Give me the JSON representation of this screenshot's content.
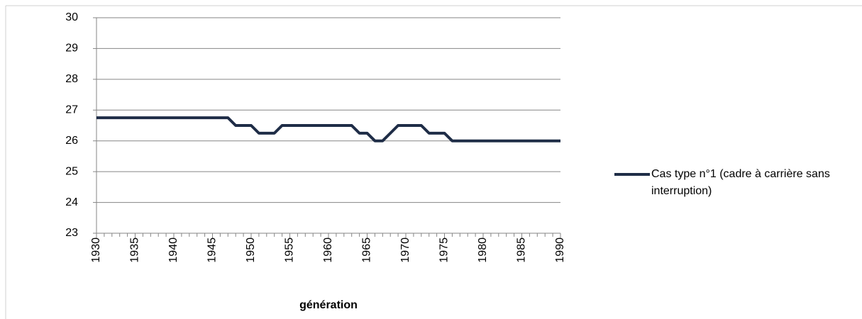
{
  "chart_data": {
    "type": "line",
    "x_label": "génération",
    "x": [
      1930,
      1931,
      1932,
      1933,
      1934,
      1935,
      1936,
      1937,
      1938,
      1939,
      1940,
      1941,
      1942,
      1943,
      1944,
      1945,
      1946,
      1947,
      1948,
      1949,
      1950,
      1951,
      1952,
      1953,
      1954,
      1955,
      1956,
      1957,
      1958,
      1959,
      1960,
      1961,
      1962,
      1963,
      1964,
      1965,
      1966,
      1967,
      1968,
      1969,
      1970,
      1971,
      1972,
      1973,
      1974,
      1975,
      1976,
      1977,
      1978,
      1979,
      1980,
      1981,
      1982,
      1983,
      1984,
      1985,
      1986,
      1987,
      1988,
      1989,
      1990
    ],
    "series": [
      {
        "name": "Cas type n°1 (cadre à carrière sans interruption)",
        "color": "#1f2d47",
        "values": [
          26.75,
          26.75,
          26.75,
          26.75,
          26.75,
          26.75,
          26.75,
          26.75,
          26.75,
          26.75,
          26.75,
          26.75,
          26.75,
          26.75,
          26.75,
          26.75,
          26.75,
          26.75,
          26.5,
          26.5,
          26.5,
          26.25,
          26.25,
          26.25,
          26.5,
          26.5,
          26.5,
          26.5,
          26.5,
          26.5,
          26.5,
          26.5,
          26.5,
          26.5,
          26.25,
          26.25,
          26,
          26,
          26.25,
          26.5,
          26.5,
          26.5,
          26.5,
          26.25,
          26.25,
          26.25,
          26,
          26,
          26,
          26,
          26,
          26,
          26,
          26,
          26,
          26,
          26,
          26,
          26,
          26,
          26
        ]
      }
    ],
    "xlim": [
      1930,
      1990
    ],
    "xticks": [
      1930,
      1935,
      1940,
      1945,
      1950,
      1955,
      1960,
      1965,
      1970,
      1975,
      1980,
      1985,
      1990
    ],
    "ylim": [
      23,
      30
    ],
    "yticks": [
      23,
      24,
      25,
      26,
      27,
      28,
      29,
      30
    ],
    "grid": true,
    "legend": "right"
  }
}
